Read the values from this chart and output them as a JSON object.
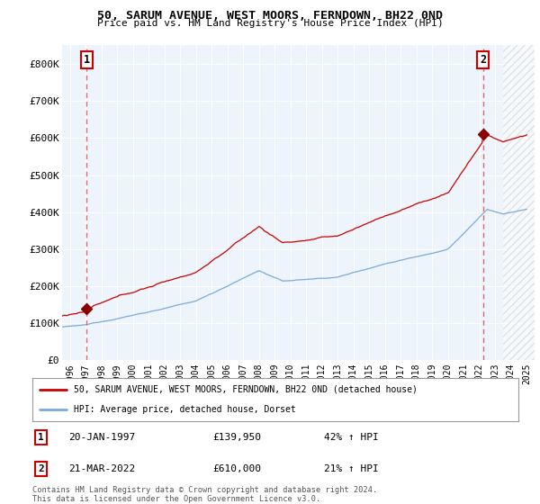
{
  "title": "50, SARUM AVENUE, WEST MOORS, FERNDOWN, BH22 0ND",
  "subtitle": "Price paid vs. HM Land Registry's House Price Index (HPI)",
  "background_color": "#EEF4FB",
  "plot_bg_color": "#EEF4FB",
  "ylim": [
    0,
    850000
  ],
  "yticks": [
    0,
    100000,
    200000,
    300000,
    400000,
    500000,
    600000,
    700000,
    800000
  ],
  "ytick_labels": [
    "£0",
    "£100K",
    "£200K",
    "£300K",
    "£400K",
    "£500K",
    "£600K",
    "£700K",
    "£800K"
  ],
  "xlim_start": 1995.5,
  "xlim_end": 2025.5,
  "grid_color": "#ffffff",
  "sale1_date_x": 1997.05,
  "sale1_price": 139950,
  "sale2_date_x": 2022.22,
  "sale2_price": 610000,
  "hatch_start": 2023.5,
  "legend_line1": "50, SARUM AVENUE, WEST MOORS, FERNDOWN, BH22 0ND (detached house)",
  "legend_line2": "HPI: Average price, detached house, Dorset",
  "annot1_date": "20-JAN-1997",
  "annot1_price": "£139,950",
  "annot1_hpi": "42% ↑ HPI",
  "annot2_date": "21-MAR-2022",
  "annot2_price": "£610,000",
  "annot2_hpi": "21% ↑ HPI",
  "footer": "Contains HM Land Registry data © Crown copyright and database right 2024.\nThis data is licensed under the Open Government Licence v3.0.",
  "line_color_red": "#cc0000",
  "line_color_blue": "#7aaadd",
  "marker_color_red": "#880000",
  "dashed_color": "#dd4444"
}
